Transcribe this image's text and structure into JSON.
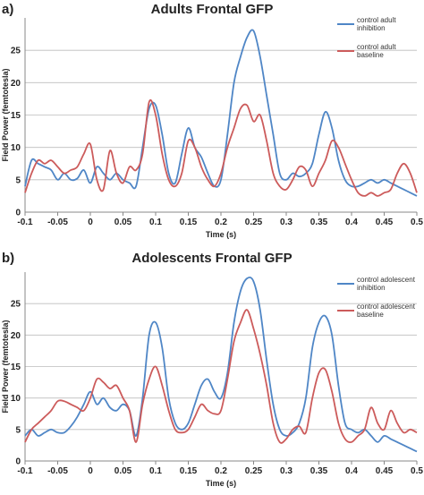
{
  "chart_data": [
    {
      "panel_label": "a)",
      "type": "line",
      "title": "Adults Frontal GFP",
      "xlabel": "Time (s)",
      "ylabel": "Field Power (femtotesla)",
      "xlim": [
        -0.1,
        0.5
      ],
      "ylim": [
        0,
        30
      ],
      "xticks": [
        -0.1,
        -0.05,
        0,
        0.05,
        0.1,
        0.15,
        0.2,
        0.25,
        0.3,
        0.35,
        0.4,
        0.45,
        0.5
      ],
      "xtick_labels": [
        "-0.1",
        "-0.05",
        "0",
        "0.05",
        "0.1",
        "0.15",
        "0.2",
        "0.25",
        "0.3",
        "0.35",
        "0.4",
        "0.45",
        "0.5"
      ],
      "yticks": [
        0,
        5,
        10,
        15,
        20,
        25
      ],
      "grid": "horizontal",
      "legend_position": "top-right",
      "series": [
        {
          "name": "control adult inhibition",
          "color": "#4f86c6",
          "x": [
            -0.1,
            -0.09,
            -0.08,
            -0.07,
            -0.06,
            -0.05,
            -0.04,
            -0.03,
            -0.02,
            -0.01,
            0,
            0.01,
            0.02,
            0.03,
            0.04,
            0.05,
            0.06,
            0.07,
            0.08,
            0.09,
            0.1,
            0.11,
            0.12,
            0.13,
            0.14,
            0.15,
            0.16,
            0.17,
            0.18,
            0.19,
            0.2,
            0.21,
            0.22,
            0.23,
            0.24,
            0.25,
            0.26,
            0.27,
            0.28,
            0.29,
            0.3,
            0.31,
            0.32,
            0.33,
            0.34,
            0.35,
            0.36,
            0.37,
            0.38,
            0.39,
            0.4,
            0.41,
            0.42,
            0.43,
            0.44,
            0.45,
            0.46,
            0.47,
            0.48,
            0.49,
            0.5
          ],
          "y": [
            4,
            8,
            7.5,
            7,
            6.5,
            5,
            6,
            5,
            5.2,
            6.5,
            4.5,
            7,
            6,
            5,
            6,
            5,
            4.5,
            4,
            10,
            16,
            16.5,
            12,
            6,
            4.5,
            9,
            13,
            10,
            8.5,
            6,
            4,
            5,
            12,
            20,
            24,
            27,
            28,
            24,
            18,
            12,
            6,
            5,
            6,
            5.5,
            6,
            7.5,
            12,
            15.5,
            13,
            8,
            5,
            4,
            4,
            4.5,
            5,
            4.5,
            5,
            4.5,
            4,
            3.5,
            3,
            2.5
          ]
        },
        {
          "name": "control adult baseline",
          "color": "#cc5b5b",
          "x": [
            -0.1,
            -0.09,
            -0.08,
            -0.07,
            -0.06,
            -0.05,
            -0.04,
            -0.03,
            -0.02,
            -0.01,
            0,
            0.01,
            0.02,
            0.03,
            0.04,
            0.05,
            0.06,
            0.07,
            0.08,
            0.09,
            0.1,
            0.11,
            0.12,
            0.13,
            0.14,
            0.15,
            0.16,
            0.17,
            0.18,
            0.19,
            0.2,
            0.21,
            0.22,
            0.23,
            0.24,
            0.25,
            0.26,
            0.27,
            0.28,
            0.29,
            0.3,
            0.31,
            0.32,
            0.33,
            0.34,
            0.35,
            0.36,
            0.37,
            0.38,
            0.39,
            0.4,
            0.41,
            0.42,
            0.43,
            0.44,
            0.45,
            0.46,
            0.47,
            0.48,
            0.49,
            0.5
          ],
          "y": [
            3,
            6,
            8,
            7.5,
            8,
            7,
            6,
            6.5,
            7,
            9,
            10.5,
            5,
            3.5,
            9.5,
            6,
            4.5,
            7,
            6.5,
            9,
            17,
            15,
            9,
            5,
            4,
            6,
            11,
            10,
            7,
            5,
            4,
            6,
            10,
            13,
            16,
            16.5,
            14,
            15,
            11,
            6,
            4,
            3.5,
            5,
            7,
            6.5,
            4,
            6,
            8,
            11,
            10,
            7.5,
            5,
            3,
            2.5,
            3,
            2.5,
            3,
            3.5,
            6,
            7.5,
            6,
            3
          ]
        }
      ]
    },
    {
      "panel_label": "b)",
      "type": "line",
      "title": "Adolescents Frontal GFP",
      "xlabel": "Time (s)",
      "ylabel": "Field Power (femtotesla)",
      "xlim": [
        -0.1,
        0.5
      ],
      "ylim": [
        0,
        30
      ],
      "xticks": [
        -0.1,
        -0.05,
        0,
        0.05,
        0.1,
        0.15,
        0.2,
        0.25,
        0.3,
        0.35,
        0.4,
        0.45,
        0.5
      ],
      "xtick_labels": [
        "-0.1",
        "-0.05",
        "0",
        "0.05",
        "0.1",
        "0.15",
        "0.2",
        "0.25",
        "0.3",
        "0.35",
        "0.4",
        "0.45",
        "0.5"
      ],
      "yticks": [
        0,
        5,
        10,
        15,
        20,
        25
      ],
      "grid": "horizontal",
      "legend_position": "top-right",
      "series": [
        {
          "name": "control adolescent inhibition",
          "color": "#4f86c6",
          "x": [
            -0.1,
            -0.09,
            -0.08,
            -0.07,
            -0.06,
            -0.05,
            -0.04,
            -0.03,
            -0.02,
            -0.01,
            0,
            0.01,
            0.02,
            0.03,
            0.04,
            0.05,
            0.06,
            0.07,
            0.08,
            0.09,
            0.1,
            0.11,
            0.12,
            0.13,
            0.14,
            0.15,
            0.16,
            0.17,
            0.18,
            0.19,
            0.2,
            0.21,
            0.22,
            0.23,
            0.24,
            0.25,
            0.26,
            0.27,
            0.28,
            0.29,
            0.3,
            0.31,
            0.32,
            0.33,
            0.34,
            0.35,
            0.36,
            0.37,
            0.38,
            0.39,
            0.4,
            0.41,
            0.42,
            0.43,
            0.44,
            0.45,
            0.46,
            0.47,
            0.48,
            0.49,
            0.5
          ],
          "y": [
            4,
            5,
            4,
            4.5,
            5,
            4.5,
            4.5,
            5.5,
            7,
            9,
            11,
            9,
            10,
            8.5,
            8,
            9,
            8,
            4,
            10,
            20,
            22,
            18,
            10,
            6,
            5,
            6,
            9,
            12,
            13,
            11,
            10,
            14,
            22,
            27,
            29,
            28.5,
            24,
            16,
            9,
            5,
            4,
            4.5,
            6,
            10,
            18,
            22,
            23,
            20,
            12,
            6,
            5,
            4.5,
            5,
            4,
            3,
            4,
            3.5,
            3,
            2.5,
            2,
            1.5
          ]
        },
        {
          "name": "control adolescent baseline",
          "color": "#cc5b5b",
          "x": [
            -0.1,
            -0.09,
            -0.08,
            -0.07,
            -0.06,
            -0.05,
            -0.04,
            -0.03,
            -0.02,
            -0.01,
            0,
            0.01,
            0.02,
            0.03,
            0.04,
            0.05,
            0.06,
            0.07,
            0.08,
            0.09,
            0.1,
            0.11,
            0.12,
            0.13,
            0.14,
            0.15,
            0.16,
            0.17,
            0.18,
            0.19,
            0.2,
            0.21,
            0.22,
            0.23,
            0.24,
            0.25,
            0.26,
            0.27,
            0.28,
            0.29,
            0.3,
            0.31,
            0.32,
            0.33,
            0.34,
            0.35,
            0.36,
            0.37,
            0.38,
            0.39,
            0.4,
            0.41,
            0.42,
            0.43,
            0.44,
            0.45,
            0.46,
            0.47,
            0.48,
            0.49,
            0.5
          ],
          "y": [
            3,
            5,
            6,
            7,
            8,
            9.5,
            9.5,
            9,
            8.5,
            8,
            10,
            13,
            12.5,
            11.5,
            12,
            10,
            8,
            3,
            9,
            13,
            15,
            12,
            8,
            5,
            4.5,
            5,
            7,
            9,
            8,
            7.5,
            8,
            13,
            19,
            22,
            24,
            21,
            17,
            12,
            6,
            3,
            3.5,
            5,
            5.5,
            4.5,
            10,
            14,
            14.5,
            11,
            6,
            3.5,
            3,
            4,
            5,
            8.5,
            6,
            5,
            8,
            6,
            4.5,
            5,
            4.5
          ]
        }
      ]
    }
  ]
}
